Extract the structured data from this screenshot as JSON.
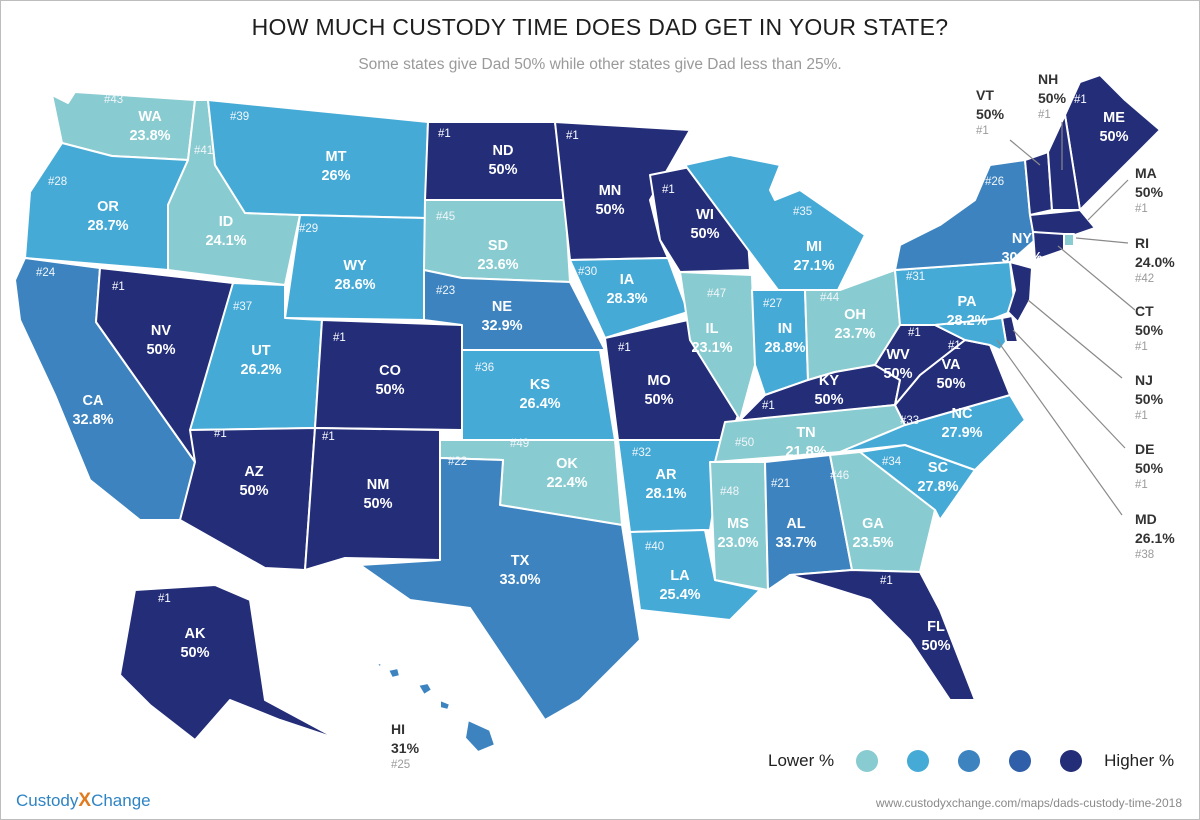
{
  "header": {
    "title": "HOW MUCH CUSTODY TIME DOES DAD GET IN YOUR STATE?",
    "subtitle": "Some states give Dad 50% while other states give Dad less than 25%."
  },
  "colors": {
    "tier1": "#88cbd0",
    "tier2": "#46aad6",
    "tier3": "#3c83bf",
    "tier4": "#2f5fa8",
    "tier5": "#232d78",
    "border": "#ffffff"
  },
  "states": [
    {
      "abbr": "WA",
      "pct": "23.8%",
      "rank": "#43",
      "tier": 1
    },
    {
      "abbr": "OR",
      "pct": "28.7%",
      "rank": "#28",
      "tier": 2
    },
    {
      "abbr": "CA",
      "pct": "32.8%",
      "rank": "#24",
      "tier": 3
    },
    {
      "abbr": "ID",
      "pct": "24.1%",
      "rank": "#41",
      "tier": 1
    },
    {
      "abbr": "NV",
      "pct": "50%",
      "rank": "#1",
      "tier": 5
    },
    {
      "abbr": "MT",
      "pct": "26%",
      "rank": "#39",
      "tier": 2
    },
    {
      "abbr": "WY",
      "pct": "28.6%",
      "rank": "#29",
      "tier": 2
    },
    {
      "abbr": "UT",
      "pct": "26.2%",
      "rank": "#37",
      "tier": 2
    },
    {
      "abbr": "AZ",
      "pct": "50%",
      "rank": "#1",
      "tier": 5
    },
    {
      "abbr": "CO",
      "pct": "50%",
      "rank": "#1",
      "tier": 5
    },
    {
      "abbr": "NM",
      "pct": "50%",
      "rank": "#1",
      "tier": 5
    },
    {
      "abbr": "ND",
      "pct": "50%",
      "rank": "#1",
      "tier": 5
    },
    {
      "abbr": "SD",
      "pct": "23.6%",
      "rank": "#45",
      "tier": 1
    },
    {
      "abbr": "NE",
      "pct": "32.9%",
      "rank": "#23",
      "tier": 3
    },
    {
      "abbr": "KS",
      "pct": "26.4%",
      "rank": "#36",
      "tier": 2
    },
    {
      "abbr": "OK",
      "pct": "22.4%",
      "rank": "#49",
      "tier": 1
    },
    {
      "abbr": "TX",
      "pct": "33.0%",
      "rank": "#22",
      "tier": 3
    },
    {
      "abbr": "MN",
      "pct": "50%",
      "rank": "#1",
      "tier": 5
    },
    {
      "abbr": "IA",
      "pct": "28.3%",
      "rank": "#30",
      "tier": 2
    },
    {
      "abbr": "MO",
      "pct": "50%",
      "rank": "#1",
      "tier": 5
    },
    {
      "abbr": "AR",
      "pct": "28.1%",
      "rank": "#32",
      "tier": 2
    },
    {
      "abbr": "LA",
      "pct": "25.4%",
      "rank": "#40",
      "tier": 2
    },
    {
      "abbr": "WI",
      "pct": "50%",
      "rank": "#1",
      "tier": 5
    },
    {
      "abbr": "IL",
      "pct": "23.1%",
      "rank": "#47",
      "tier": 1
    },
    {
      "abbr": "MI",
      "pct": "27.1%",
      "rank": "#35",
      "tier": 2
    },
    {
      "abbr": "IN",
      "pct": "28.8%",
      "rank": "#27",
      "tier": 2
    },
    {
      "abbr": "OH",
      "pct": "23.7%",
      "rank": "#44",
      "tier": 1
    },
    {
      "abbr": "KY",
      "pct": "50%",
      "rank": "#1",
      "tier": 5
    },
    {
      "abbr": "TN",
      "pct": "21.8%",
      "rank": "#50",
      "tier": 1
    },
    {
      "abbr": "MS",
      "pct": "23.0%",
      "rank": "#48",
      "tier": 1
    },
    {
      "abbr": "AL",
      "pct": "33.7%",
      "rank": "#21",
      "tier": 3
    },
    {
      "abbr": "GA",
      "pct": "23.5%",
      "rank": "#46",
      "tier": 1
    },
    {
      "abbr": "FL",
      "pct": "50%",
      "rank": "#1",
      "tier": 5
    },
    {
      "abbr": "SC",
      "pct": "27.8%",
      "rank": "#34",
      "tier": 2
    },
    {
      "abbr": "NC",
      "pct": "27.9%",
      "rank": "#33",
      "tier": 2
    },
    {
      "abbr": "VA",
      "pct": "50%",
      "rank": "#1",
      "tier": 5
    },
    {
      "abbr": "WV",
      "pct": "50%",
      "rank": "#1",
      "tier": 5
    },
    {
      "abbr": "PA",
      "pct": "28.2%",
      "rank": "#31",
      "tier": 2
    },
    {
      "abbr": "NY",
      "pct": "30.4%",
      "rank": "#26",
      "tier": 3
    },
    {
      "abbr": "ME",
      "pct": "50%",
      "rank": "#1",
      "tier": 5
    },
    {
      "abbr": "AK",
      "pct": "50%",
      "rank": "#1",
      "tier": 5
    },
    {
      "abbr": "HI",
      "pct": "31%",
      "rank": "#25",
      "tier": 3
    },
    {
      "abbr": "VT",
      "pct": "50%",
      "rank": "#1",
      "tier": 5
    },
    {
      "abbr": "NH",
      "pct": "50%",
      "rank": "#1",
      "tier": 5
    },
    {
      "abbr": "MA",
      "pct": "50%",
      "rank": "#1",
      "tier": 5
    },
    {
      "abbr": "RI",
      "pct": "24.0%",
      "rank": "#42",
      "tier": 1
    },
    {
      "abbr": "CT",
      "pct": "50%",
      "rank": "#1",
      "tier": 5
    },
    {
      "abbr": "NJ",
      "pct": "50%",
      "rank": "#1",
      "tier": 5
    },
    {
      "abbr": "DE",
      "pct": "50%",
      "rank": "#1",
      "tier": 5
    },
    {
      "abbr": "MD",
      "pct": "26.1%",
      "rank": "#38",
      "tier": 2
    }
  ],
  "legend": {
    "low_label": "Lower %",
    "high_label": "Higher %"
  },
  "footer": {
    "logo_a": "Custody",
    "logo_x": "X",
    "logo_b": "Change",
    "url": "www.custodyxchange.com/maps/dads-custody-time-2018"
  }
}
